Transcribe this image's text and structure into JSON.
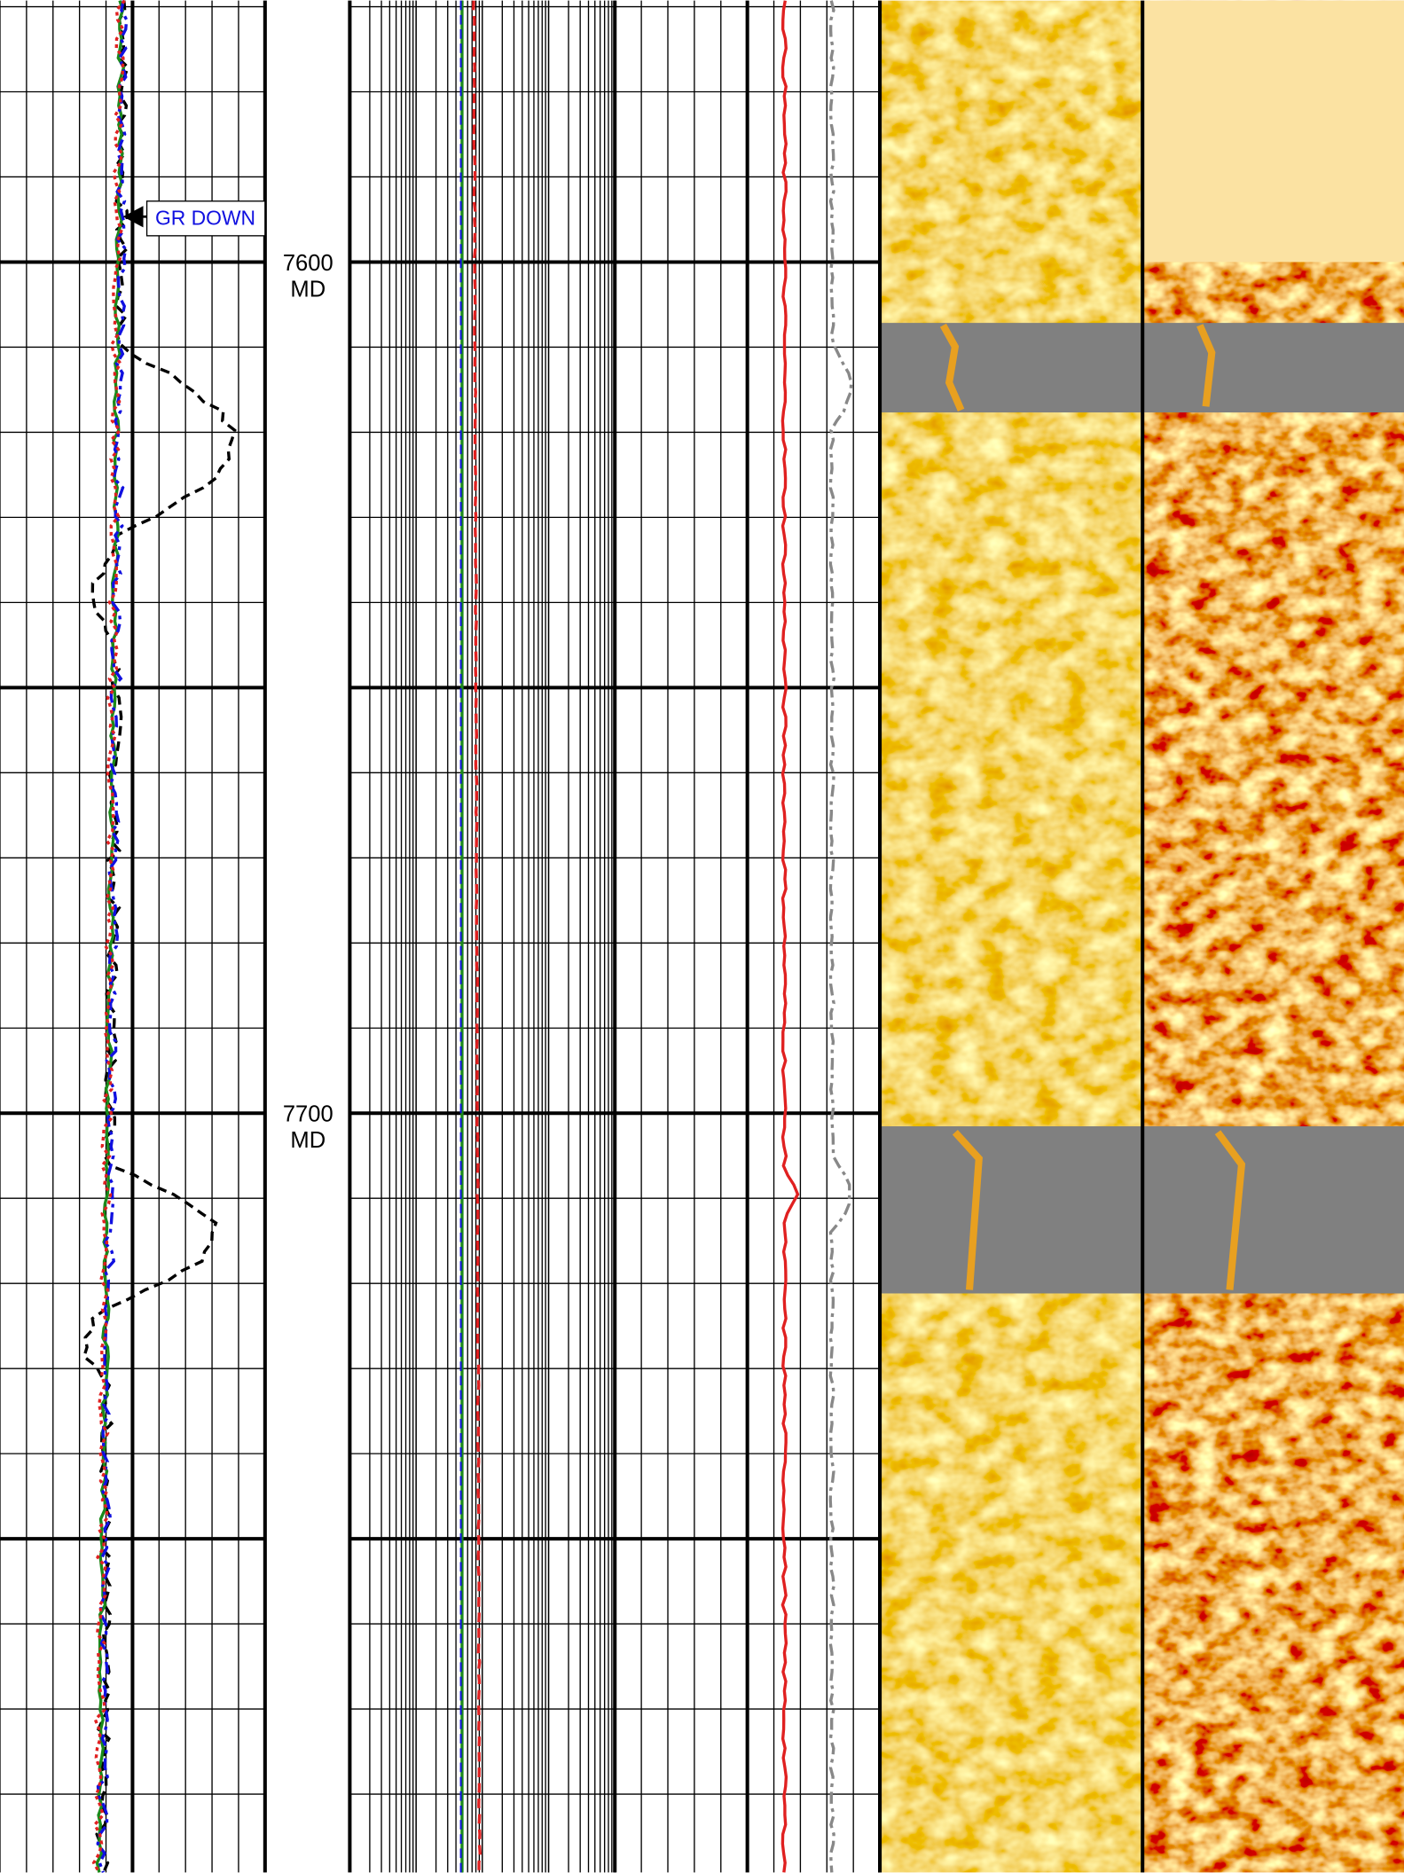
{
  "annotation": {
    "label": "GR DOWN"
  },
  "depth_marks": [
    {
      "depth": "7600",
      "unit": "MD"
    },
    {
      "depth": "7700",
      "unit": "MD"
    }
  ]
}
